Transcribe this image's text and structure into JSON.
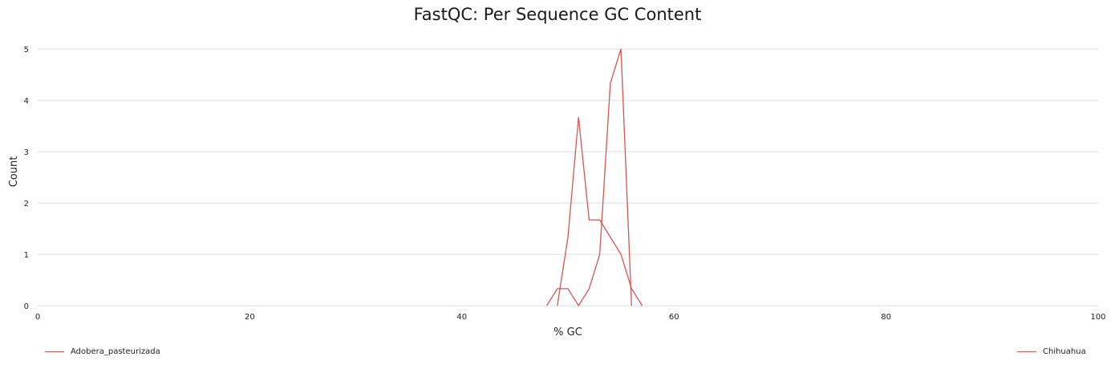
{
  "chart_data": {
    "type": "line",
    "title": "FastQC: Per Sequence GC Content",
    "xlabel": "% GC",
    "ylabel": "Count",
    "xlim": [
      0,
      100
    ],
    "ylim": [
      0,
      5
    ],
    "xticks": [
      "0",
      "20",
      "40",
      "60",
      "80",
      "100"
    ],
    "yticks": [
      "0",
      "1",
      "2",
      "3",
      "4",
      "5"
    ],
    "grid": "horizontal",
    "legend": "bottom",
    "series": [
      {
        "name": "Adobera_pasteurizada",
        "color": "#d9534f",
        "x": [
          49,
          50,
          51,
          52,
          53,
          55,
          56,
          57
        ],
        "y": [
          0,
          1.33,
          3.67,
          1.67,
          1.67,
          1.0,
          0.33,
          0
        ]
      },
      {
        "name": "Chihuahua",
        "color": "#d9534f",
        "x": [
          48,
          49,
          50,
          51,
          52,
          53,
          54,
          55,
          56
        ],
        "y": [
          0,
          0.33,
          0.33,
          0,
          0.33,
          1.0,
          4.33,
          5.0,
          0
        ]
      }
    ]
  }
}
